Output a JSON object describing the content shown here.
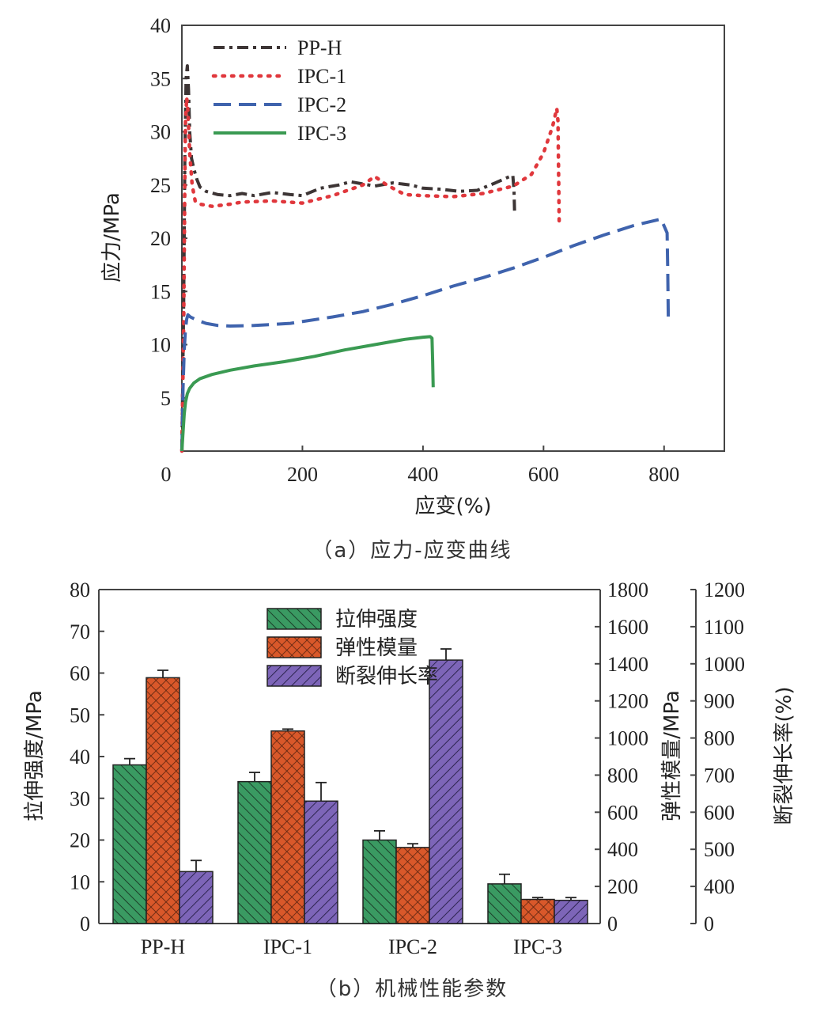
{
  "chart_data": [
    {
      "type": "line",
      "caption": "（a）应力-应变曲线",
      "xlabel": "应变(%)",
      "ylabel": "应力/MPa",
      "xlim": [
        0,
        900
      ],
      "ylim": [
        0,
        40
      ],
      "xticks": [
        0,
        200,
        400,
        600,
        800
      ],
      "yticks": [
        5,
        10,
        15,
        20,
        25,
        30,
        35,
        40
      ],
      "legend_position": "top-left",
      "series": [
        {
          "name": "PP-H",
          "color": "#3d3535",
          "dash": "dashdot",
          "points": [
            [
              0,
              0
            ],
            [
              3,
              14
            ],
            [
              5,
              28
            ],
            [
              7,
              35
            ],
            [
              9,
              36.2
            ],
            [
              11,
              34
            ],
            [
              13,
              30
            ],
            [
              16,
              27.5
            ],
            [
              20,
              26.5
            ],
            [
              25,
              25.5
            ],
            [
              30,
              24.8
            ],
            [
              40,
              24.4
            ],
            [
              60,
              24.1
            ],
            [
              80,
              24.0
            ],
            [
              100,
              24.2
            ],
            [
              120,
              24.0
            ],
            [
              150,
              24.3
            ],
            [
              180,
              24.1
            ],
            [
              200,
              24.0
            ],
            [
              230,
              24.7
            ],
            [
              260,
              25.0
            ],
            [
              280,
              25.3
            ],
            [
              300,
              25.1
            ],
            [
              320,
              24.9
            ],
            [
              350,
              25.2
            ],
            [
              380,
              25.0
            ],
            [
              400,
              24.7
            ],
            [
              430,
              24.6
            ],
            [
              460,
              24.4
            ],
            [
              490,
              24.5
            ],
            [
              520,
              25.2
            ],
            [
              540,
              25.7
            ],
            [
              549,
              25.9
            ],
            [
              551,
              24.5
            ],
            [
              552,
              22.5
            ]
          ]
        },
        {
          "name": "IPC-1",
          "color": "#e0373c",
          "dash": "dotted",
          "points": [
            [
              0,
              0
            ],
            [
              3,
              12
            ],
            [
              5,
              26
            ],
            [
              6,
              31
            ],
            [
              8,
              33.2
            ],
            [
              10,
              32
            ],
            [
              13,
              28
            ],
            [
              17,
              25
            ],
            [
              22,
              23.5
            ],
            [
              30,
              23.2
            ],
            [
              50,
              23.0
            ],
            [
              80,
              23.2
            ],
            [
              100,
              23.4
            ],
            [
              150,
              23.5
            ],
            [
              200,
              23.3
            ],
            [
              250,
              24.0
            ],
            [
              300,
              25.0
            ],
            [
              320,
              25.8
            ],
            [
              340,
              25.0
            ],
            [
              370,
              24.1
            ],
            [
              400,
              24.0
            ],
            [
              450,
              23.9
            ],
            [
              500,
              24.2
            ],
            [
              550,
              24.9
            ],
            [
              580,
              26.0
            ],
            [
              600,
              28.0
            ],
            [
              615,
              30.5
            ],
            [
              622,
              32.2
            ],
            [
              624,
              31.0
            ],
            [
              625,
              26
            ],
            [
              626,
              21
            ]
          ]
        },
        {
          "name": "IPC-2",
          "color": "#3f63ad",
          "dash": "dashed",
          "points": [
            [
              0,
              0
            ],
            [
              2,
              6
            ],
            [
              4,
              9.5
            ],
            [
              6,
              11.5
            ],
            [
              8,
              12.4
            ],
            [
              10,
              12.8
            ],
            [
              14,
              12.6
            ],
            [
              25,
              12.3
            ],
            [
              40,
              12.0
            ],
            [
              60,
              11.8
            ],
            [
              80,
              11.75
            ],
            [
              120,
              11.8
            ],
            [
              180,
              12.0
            ],
            [
              250,
              12.6
            ],
            [
              300,
              13.1
            ],
            [
              350,
              13.8
            ],
            [
              400,
              14.6
            ],
            [
              450,
              15.5
            ],
            [
              500,
              16.3
            ],
            [
              550,
              17.2
            ],
            [
              600,
              18.2
            ],
            [
              650,
              19.3
            ],
            [
              700,
              20.3
            ],
            [
              750,
              21.2
            ],
            [
              795,
              21.8
            ],
            [
              805,
              20.5
            ],
            [
              806,
              17
            ],
            [
              807,
              12.5
            ]
          ]
        },
        {
          "name": "IPC-3",
          "color": "#3a9a52",
          "dash": "solid",
          "points": [
            [
              0,
              0
            ],
            [
              2,
              1.8
            ],
            [
              4,
              3.5
            ],
            [
              6,
              4.6
            ],
            [
              9,
              5.4
            ],
            [
              13,
              5.9
            ],
            [
              20,
              6.4
            ],
            [
              30,
              6.8
            ],
            [
              50,
              7.2
            ],
            [
              80,
              7.6
            ],
            [
              120,
              8.0
            ],
            [
              170,
              8.4
            ],
            [
              220,
              8.9
            ],
            [
              270,
              9.5
            ],
            [
              320,
              10.0
            ],
            [
              370,
              10.5
            ],
            [
              400,
              10.7
            ],
            [
              412,
              10.75
            ],
            [
              415,
              10.6
            ],
            [
              416,
              8.5
            ],
            [
              417,
              6.0
            ]
          ]
        }
      ]
    },
    {
      "type": "bar",
      "caption": "（b）机械性能参数",
      "categories": [
        "PP-H",
        "IPC-1",
        "IPC-2",
        "IPC-3"
      ],
      "legend_position": "top-center",
      "series": [
        {
          "name": "拉伸强度",
          "axis": "left",
          "color": "#3a9a62",
          "pattern": "diagonal",
          "values": [
            38,
            34,
            20,
            9.5
          ],
          "errors": [
            1.5,
            2.2,
            2.2,
            2.3
          ]
        },
        {
          "name": "弹性模量",
          "axis": "right1",
          "color": "#d9582a",
          "pattern": "crosshatch",
          "values": [
            1325,
            1038,
            410,
            130
          ],
          "errors": [
            40,
            10,
            20,
            10
          ]
        },
        {
          "name": "断裂伸长率",
          "axis": "right2",
          "color": "#7d65b8",
          "pattern": "backslash",
          "values": [
            440,
            630,
            1010,
            250
          ],
          "errors": [
            30,
            50,
            30,
            30
          ]
        }
      ],
      "axes": {
        "left": {
          "label": "拉伸强度/MPa",
          "ylim": [
            0,
            80
          ],
          "ticks": [
            0,
            10,
            20,
            30,
            40,
            50,
            60,
            70,
            80
          ]
        },
        "right1": {
          "label": "弹性模量/MPa",
          "ylim": [
            0,
            1800
          ],
          "ticks": [
            0,
            200,
            400,
            600,
            800,
            1000,
            1200,
            1400,
            1600,
            1800
          ]
        },
        "right2": {
          "label": "断裂伸长率(%)",
          "ylim": [
            0,
            1200
          ],
          "ticks": [
            0,
            400,
            500,
            600,
            700,
            800,
            900,
            1000,
            1100,
            1200
          ]
        }
      }
    }
  ]
}
